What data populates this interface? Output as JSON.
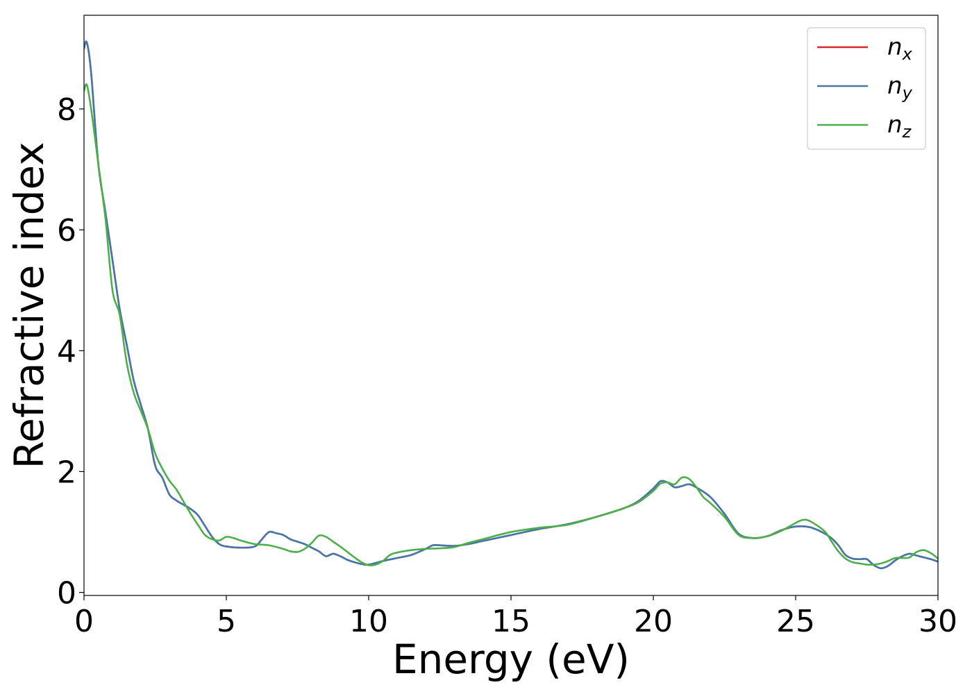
{
  "chart_data": {
    "type": "line",
    "xlabel": "Energy (eV)",
    "ylabel": "Refractive index",
    "xlim": [
      0,
      30
    ],
    "ylim": [
      -0.05,
      9.55
    ],
    "xticks": [
      0,
      5,
      10,
      15,
      20,
      25,
      30
    ],
    "xtick_labels": [
      "0",
      "5",
      "10",
      "15",
      "20",
      "25",
      "30"
    ],
    "yticks": [
      0,
      2,
      4,
      6,
      8
    ],
    "ytick_labels": [
      "0",
      "2",
      "4",
      "6",
      "8"
    ],
    "grid": false,
    "legend_position": "top-right",
    "series": [
      {
        "name": "n",
        "subscript": "x",
        "color": "#d62728",
        "x": [
          0.0,
          0.1,
          0.25,
          0.5,
          0.75,
          1.0,
          1.25,
          1.5,
          1.75,
          2.0,
          2.25,
          2.5,
          2.75,
          3.0,
          3.25,
          3.5,
          3.75,
          4.0,
          4.25,
          4.5,
          4.75,
          5.0,
          5.5,
          6.0,
          6.25,
          6.5,
          6.75,
          7.0,
          7.25,
          7.5,
          7.75,
          8.0,
          8.25,
          8.5,
          8.75,
          9.0,
          9.25,
          9.5,
          9.75,
          10.0,
          10.5,
          11.0,
          11.5,
          12.0,
          12.25,
          12.5,
          13.0,
          13.5,
          14.0,
          15.0,
          16.0,
          17.0,
          18.0,
          19.0,
          19.5,
          20.0,
          20.25,
          20.5,
          20.75,
          21.0,
          21.25,
          21.5,
          22.0,
          22.5,
          23.0,
          23.5,
          24.0,
          24.5,
          25.0,
          25.5,
          26.0,
          26.25,
          26.5,
          26.75,
          27.0,
          27.25,
          27.5,
          27.75,
          28.0,
          28.25,
          28.5,
          28.75,
          29.0,
          29.25,
          29.5,
          29.75,
          30.0
        ],
        "y": [
          9.0,
          9.1,
          8.6,
          7.1,
          6.3,
          5.5,
          4.7,
          4.1,
          3.5,
          3.1,
          2.7,
          2.1,
          1.9,
          1.62,
          1.52,
          1.45,
          1.38,
          1.28,
          1.1,
          0.92,
          0.8,
          0.76,
          0.74,
          0.76,
          0.88,
          1.0,
          0.98,
          0.95,
          0.88,
          0.84,
          0.8,
          0.74,
          0.68,
          0.6,
          0.64,
          0.6,
          0.54,
          0.5,
          0.47,
          0.46,
          0.52,
          0.57,
          0.62,
          0.72,
          0.78,
          0.78,
          0.77,
          0.8,
          0.85,
          0.95,
          1.05,
          1.13,
          1.25,
          1.4,
          1.52,
          1.72,
          1.84,
          1.82,
          1.74,
          1.76,
          1.79,
          1.74,
          1.58,
          1.3,
          0.97,
          0.9,
          0.93,
          1.03,
          1.09,
          1.08,
          0.98,
          0.9,
          0.78,
          0.62,
          0.56,
          0.55,
          0.55,
          0.45,
          0.4,
          0.44,
          0.53,
          0.6,
          0.64,
          0.61,
          0.58,
          0.55,
          0.51
        ]
      },
      {
        "name": "n",
        "subscript": "y",
        "color": "#4477aa",
        "x": [
          0.0,
          0.1,
          0.25,
          0.5,
          0.75,
          1.0,
          1.25,
          1.5,
          1.75,
          2.0,
          2.25,
          2.5,
          2.75,
          3.0,
          3.25,
          3.5,
          3.75,
          4.0,
          4.25,
          4.5,
          4.75,
          5.0,
          5.5,
          6.0,
          6.25,
          6.5,
          6.75,
          7.0,
          7.25,
          7.5,
          7.75,
          8.0,
          8.25,
          8.5,
          8.75,
          9.0,
          9.25,
          9.5,
          9.75,
          10.0,
          10.5,
          11.0,
          11.5,
          12.0,
          12.25,
          12.5,
          13.0,
          13.5,
          14.0,
          15.0,
          16.0,
          17.0,
          18.0,
          19.0,
          19.5,
          20.0,
          20.25,
          20.5,
          20.75,
          21.0,
          21.25,
          21.5,
          22.0,
          22.5,
          23.0,
          23.5,
          24.0,
          24.5,
          25.0,
          25.5,
          26.0,
          26.25,
          26.5,
          26.75,
          27.0,
          27.25,
          27.5,
          27.75,
          28.0,
          28.25,
          28.5,
          28.75,
          29.0,
          29.25,
          29.5,
          29.75,
          30.0
        ],
        "y": [
          9.0,
          9.1,
          8.6,
          7.1,
          6.3,
          5.5,
          4.7,
          4.1,
          3.5,
          3.1,
          2.7,
          2.1,
          1.9,
          1.62,
          1.52,
          1.45,
          1.38,
          1.28,
          1.1,
          0.92,
          0.8,
          0.76,
          0.74,
          0.76,
          0.88,
          1.0,
          0.98,
          0.95,
          0.88,
          0.84,
          0.8,
          0.74,
          0.68,
          0.6,
          0.64,
          0.6,
          0.54,
          0.5,
          0.47,
          0.46,
          0.52,
          0.57,
          0.62,
          0.72,
          0.78,
          0.78,
          0.77,
          0.8,
          0.85,
          0.95,
          1.05,
          1.13,
          1.25,
          1.4,
          1.52,
          1.72,
          1.84,
          1.82,
          1.74,
          1.76,
          1.79,
          1.74,
          1.58,
          1.3,
          0.97,
          0.9,
          0.93,
          1.03,
          1.09,
          1.08,
          0.98,
          0.9,
          0.78,
          0.62,
          0.56,
          0.55,
          0.55,
          0.45,
          0.4,
          0.44,
          0.53,
          0.6,
          0.64,
          0.61,
          0.58,
          0.55,
          0.51
        ]
      },
      {
        "name": "n",
        "subscript": "z",
        "color": "#4daf4a",
        "x": [
          0.0,
          0.1,
          0.25,
          0.5,
          0.75,
          1.0,
          1.25,
          1.5,
          1.75,
          2.0,
          2.25,
          2.5,
          2.75,
          3.0,
          3.25,
          3.5,
          3.75,
          4.0,
          4.25,
          4.5,
          4.75,
          5.0,
          5.25,
          5.5,
          6.0,
          6.5,
          7.0,
          7.25,
          7.5,
          7.75,
          8.0,
          8.25,
          8.5,
          8.75,
          9.0,
          9.5,
          9.75,
          10.0,
          10.25,
          10.5,
          10.75,
          11.0,
          11.5,
          12.0,
          12.5,
          13.0,
          13.5,
          14.0,
          15.0,
          16.0,
          17.0,
          18.0,
          19.0,
          19.5,
          20.0,
          20.25,
          20.5,
          20.75,
          21.0,
          21.25,
          21.5,
          21.75,
          22.0,
          22.5,
          23.0,
          23.5,
          24.0,
          24.5,
          25.0,
          25.25,
          25.5,
          26.0,
          26.25,
          26.5,
          26.75,
          27.0,
          27.25,
          27.5,
          27.75,
          28.0,
          28.25,
          28.5,
          28.75,
          29.0,
          29.25,
          29.5,
          29.75,
          30.0
        ],
        "y": [
          8.3,
          8.4,
          8.0,
          7.1,
          6.2,
          5.0,
          4.6,
          3.8,
          3.3,
          3.0,
          2.7,
          2.3,
          2.05,
          1.85,
          1.7,
          1.5,
          1.3,
          1.12,
          0.95,
          0.88,
          0.86,
          0.92,
          0.9,
          0.86,
          0.8,
          0.78,
          0.72,
          0.68,
          0.67,
          0.72,
          0.82,
          0.94,
          0.92,
          0.84,
          0.76,
          0.58,
          0.5,
          0.45,
          0.46,
          0.52,
          0.62,
          0.66,
          0.7,
          0.72,
          0.73,
          0.75,
          0.82,
          0.88,
          1.0,
          1.07,
          1.12,
          1.25,
          1.4,
          1.5,
          1.68,
          1.8,
          1.82,
          1.79,
          1.9,
          1.88,
          1.75,
          1.58,
          1.48,
          1.25,
          0.95,
          0.9,
          0.93,
          1.02,
          1.15,
          1.2,
          1.18,
          1.02,
          0.85,
          0.68,
          0.56,
          0.5,
          0.48,
          0.46,
          0.46,
          0.48,
          0.52,
          0.57,
          0.57,
          0.58,
          0.67,
          0.7,
          0.65,
          0.56
        ]
      }
    ]
  }
}
